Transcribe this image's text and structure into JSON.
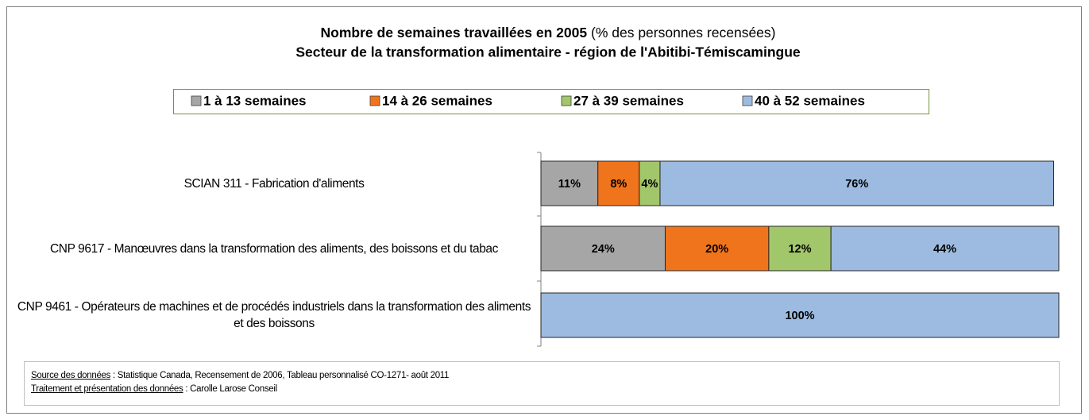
{
  "chart_data": {
    "type": "stacked_bar_horizontal",
    "title": "Nombre de semaines travaillées en 2005",
    "title_note": "(% des personnes recensées)",
    "subtitle": "Secteur de la transformation alimentaire - région de l'Abitibi-Témiscamingue",
    "categories": [
      "SCIAN 311 - Fabrication d'aliments",
      "CNP 9617 - Manœuvres dans la transformation des aliments, des boissons et du tabac",
      "CNP 9461 - Opérateurs de machines et de procédés industriels dans la transformation des aliments et des boissons"
    ],
    "xlim": [
      0,
      100
    ],
    "series": [
      {
        "name": "1 à 13 semaines",
        "color": "#a6a6a6",
        "values": [
          11,
          24,
          null
        ],
        "value_labels": [
          "11%",
          "24%",
          null
        ]
      },
      {
        "name": "14 à 26 semaines",
        "color": "#f0741c",
        "values": [
          8,
          20,
          null
        ],
        "value_labels": [
          "8%",
          "20%",
          null
        ]
      },
      {
        "name": "27 à 39 semaines",
        "color": "#a2c76a",
        "values": [
          4,
          12,
          null
        ],
        "value_labels": [
          "4%",
          "12%",
          null
        ]
      },
      {
        "name": "40 à 52 semaines",
        "color": "#9dbbe0",
        "values": [
          76,
          44,
          100
        ],
        "value_labels": [
          "76%",
          "44%",
          "100%"
        ]
      }
    ],
    "legend": "top",
    "footer": {
      "source_label": "Source des données",
      "source_text": " : Statistique Canada,  Recensement de 2006, Tableau personnalisé CO-1271- août  2011",
      "treatment_label": "Traitement et présentation des données",
      "treatment_text": " : Carolle Larose Conseil"
    }
  }
}
